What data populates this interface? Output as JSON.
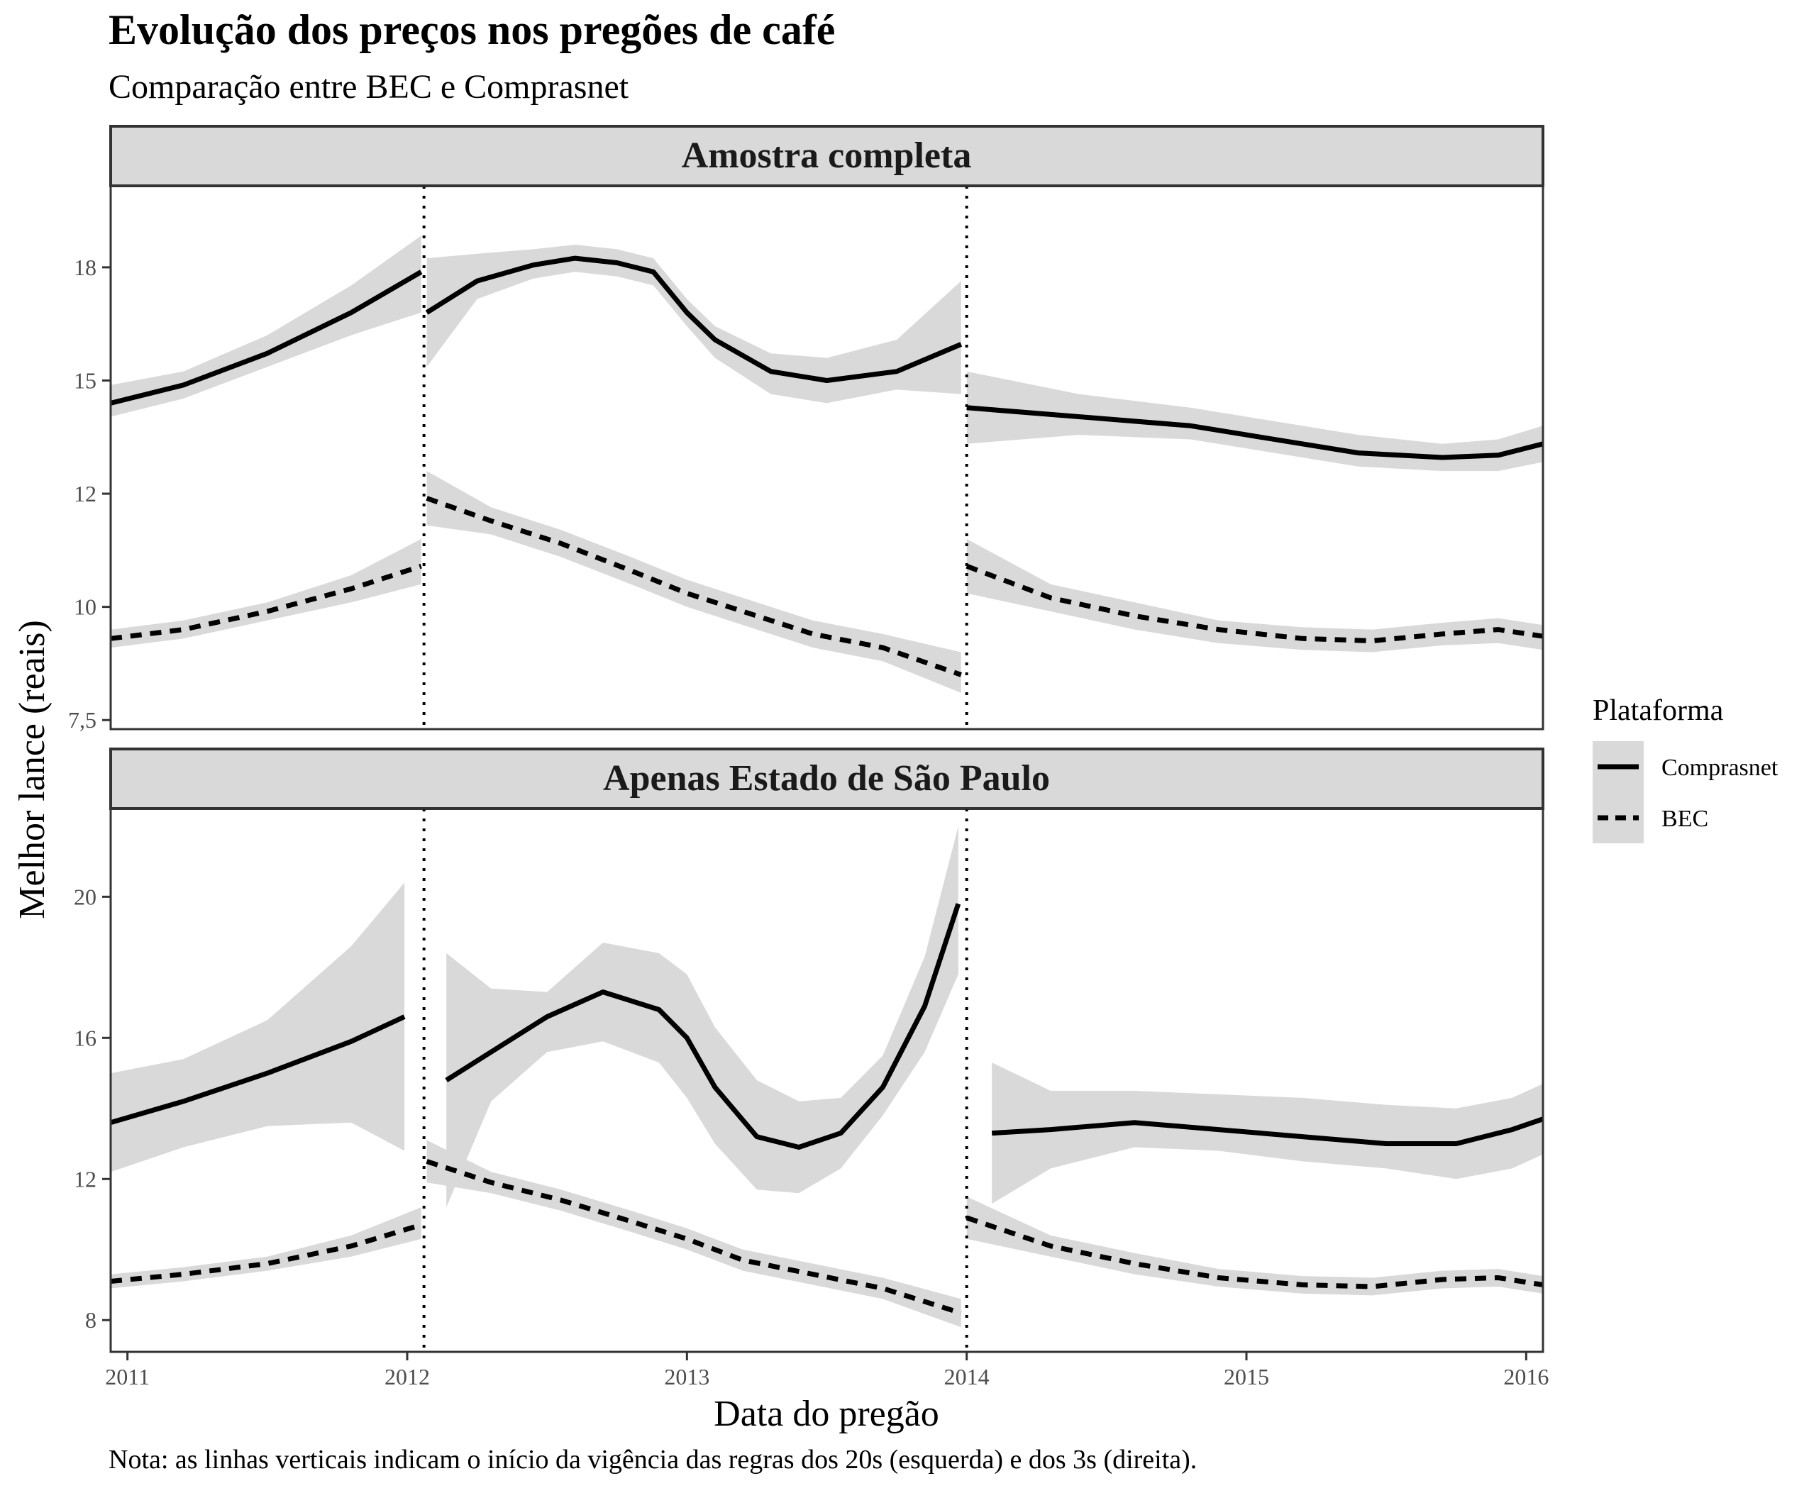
{
  "title": "Evolução dos preços nos pregões de café",
  "subtitle": "Comparação entre BEC e Comprasnet",
  "xlabel": "Data do pregão",
  "ylabel": "Melhor lance (reais)",
  "note": "Nota: as linhas verticais indicam o início da vigência das regras dos 20s (esquerda) e dos 3s (direita).",
  "legend": {
    "title": "Plataforma",
    "items": [
      "Comprasnet",
      "BEC"
    ],
    "placement": "right"
  },
  "colors": {
    "line": "#000000",
    "ribbon": "#d9d9d9",
    "strip_fill": "#d9d9d9",
    "frame": "#333333",
    "axis_text": "#4d4d4d"
  },
  "chart_data": {
    "type": "line",
    "x_axis": {
      "range": [
        2010.94,
        2016.06
      ],
      "ticks": [
        2011,
        2012,
        2013,
        2014,
        2015,
        2016
      ],
      "tick_labels": [
        "2011",
        "2012",
        "2013",
        "2014",
        "2015",
        "2016"
      ]
    },
    "vertical_lines": [
      2012.06,
      2014.0
    ],
    "panels": [
      {
        "title": "Amostra completa",
        "ylim": [
          7.3,
          19.3
        ],
        "y_ticks": [
          7.5,
          10,
          12.5,
          15,
          17.5
        ],
        "y_tick_labels": [
          "7,5",
          "10",
          "12",
          "15",
          "18"
        ],
        "series": [
          {
            "name": "Comprasnet",
            "style": "solid",
            "segments": [
              {
                "x": [
                  2010.94,
                  2011.2,
                  2011.5,
                  2011.8,
                  2012.05
                ],
                "y": [
                  14.5,
                  14.9,
                  15.6,
                  16.5,
                  17.4
                ],
                "lo": [
                  14.2,
                  14.6,
                  15.3,
                  16.0,
                  16.5
                ],
                "hi": [
                  14.9,
                  15.2,
                  16.0,
                  17.1,
                  18.2
                ]
              },
              {
                "x": [
                  2012.07,
                  2012.25,
                  2012.45,
                  2012.6,
                  2012.75,
                  2012.88,
                  2013.0,
                  2013.1,
                  2013.3,
                  2013.5,
                  2013.75,
                  2013.98
                ],
                "y": [
                  16.5,
                  17.2,
                  17.55,
                  17.7,
                  17.6,
                  17.4,
                  16.5,
                  15.9,
                  15.2,
                  15.0,
                  15.2,
                  15.8
                ],
                "lo": [
                  15.3,
                  16.8,
                  17.25,
                  17.4,
                  17.3,
                  17.1,
                  16.2,
                  15.5,
                  14.7,
                  14.5,
                  14.8,
                  14.7
                ],
                "hi": [
                  17.7,
                  17.8,
                  17.9,
                  18.0,
                  17.9,
                  17.7,
                  16.8,
                  16.2,
                  15.6,
                  15.5,
                  15.9,
                  17.2
                ]
              },
              {
                "x": [
                  2014.0,
                  2014.4,
                  2014.8,
                  2015.0,
                  2015.4,
                  2015.7,
                  2015.9,
                  2016.06
                ],
                "y": [
                  14.4,
                  14.2,
                  14.0,
                  13.8,
                  13.4,
                  13.3,
                  13.35,
                  13.6
                ],
                "lo": [
                  13.6,
                  13.8,
                  13.7,
                  13.5,
                  13.1,
                  13.0,
                  13.0,
                  13.2
                ],
                "hi": [
                  15.2,
                  14.7,
                  14.4,
                  14.2,
                  13.8,
                  13.6,
                  13.7,
                  14.0
                ]
              }
            ]
          },
          {
            "name": "BEC",
            "style": "dashed",
            "segments": [
              {
                "x": [
                  2010.94,
                  2011.2,
                  2011.5,
                  2011.8,
                  2012.05
                ],
                "y": [
                  9.3,
                  9.5,
                  9.9,
                  10.4,
                  10.9
                ],
                "lo": [
                  9.1,
                  9.3,
                  9.7,
                  10.1,
                  10.5
                ],
                "hi": [
                  9.5,
                  9.7,
                  10.1,
                  10.7,
                  11.5
                ]
              },
              {
                "x": [
                  2012.07,
                  2012.3,
                  2012.55,
                  2012.8,
                  2013.0,
                  2013.2,
                  2013.45,
                  2013.7,
                  2013.98
                ],
                "y": [
                  12.4,
                  11.9,
                  11.4,
                  10.8,
                  10.3,
                  9.9,
                  9.4,
                  9.1,
                  8.5
                ],
                "lo": [
                  11.8,
                  11.6,
                  11.1,
                  10.5,
                  10.0,
                  9.6,
                  9.1,
                  8.8,
                  8.1
                ],
                "hi": [
                  13.0,
                  12.2,
                  11.7,
                  11.1,
                  10.6,
                  10.2,
                  9.7,
                  9.4,
                  9.0
                ]
              },
              {
                "x": [
                  2014.0,
                  2014.3,
                  2014.6,
                  2014.9,
                  2015.2,
                  2015.45,
                  2015.7,
                  2015.9,
                  2016.06
                ],
                "y": [
                  10.9,
                  10.2,
                  9.8,
                  9.5,
                  9.3,
                  9.25,
                  9.4,
                  9.5,
                  9.35
                ],
                "lo": [
                  10.3,
                  9.9,
                  9.5,
                  9.2,
                  9.05,
                  9.0,
                  9.15,
                  9.2,
                  9.05
                ],
                "hi": [
                  11.5,
                  10.5,
                  10.1,
                  9.7,
                  9.55,
                  9.5,
                  9.65,
                  9.75,
                  9.6
                ]
              }
            ]
          }
        ]
      },
      {
        "title": "Apenas Estado de São Paulo",
        "ylim": [
          7.1,
          22.5
        ],
        "y_ticks": [
          8,
          12,
          16,
          20
        ],
        "y_tick_labels": [
          "8",
          "12",
          "16",
          "20"
        ],
        "series": [
          {
            "name": "Comprasnet",
            "style": "solid",
            "segments": [
              {
                "x": [
                  2010.94,
                  2011.2,
                  2011.5,
                  2011.8,
                  2011.99
                ],
                "y": [
                  13.6,
                  14.2,
                  15.0,
                  15.9,
                  16.6
                ],
                "lo": [
                  12.2,
                  12.9,
                  13.5,
                  13.6,
                  12.8
                ],
                "hi": [
                  15.0,
                  15.4,
                  16.5,
                  18.6,
                  20.4
                ]
              },
              {
                "x": [
                  2012.14,
                  2012.3,
                  2012.5,
                  2012.7,
                  2012.9,
                  2013.0,
                  2013.1,
                  2013.25,
                  2013.4,
                  2013.55,
                  2013.7,
                  2013.85,
                  2013.97
                ],
                "y": [
                  14.8,
                  15.6,
                  16.6,
                  17.3,
                  16.8,
                  16.0,
                  14.6,
                  13.2,
                  12.9,
                  13.3,
                  14.6,
                  16.9,
                  19.8
                ],
                "lo": [
                  11.2,
                  14.2,
                  15.6,
                  15.9,
                  15.3,
                  14.3,
                  13.0,
                  11.7,
                  11.6,
                  12.3,
                  13.8,
                  15.6,
                  17.8
                ],
                "hi": [
                  18.4,
                  17.4,
                  17.3,
                  18.7,
                  18.4,
                  17.8,
                  16.3,
                  14.8,
                  14.2,
                  14.3,
                  15.5,
                  18.3,
                  22.0
                ]
              },
              {
                "x": [
                  2014.09,
                  2014.3,
                  2014.6,
                  2014.9,
                  2015.2,
                  2015.5,
                  2015.75,
                  2015.95,
                  2016.06
                ],
                "y": [
                  13.3,
                  13.4,
                  13.6,
                  13.4,
                  13.2,
                  13.0,
                  13.0,
                  13.4,
                  13.7
                ],
                "lo": [
                  11.3,
                  12.3,
                  12.9,
                  12.8,
                  12.5,
                  12.3,
                  12.0,
                  12.3,
                  12.7
                ],
                "hi": [
                  15.3,
                  14.5,
                  14.5,
                  14.4,
                  14.3,
                  14.1,
                  14.0,
                  14.3,
                  14.7
                ]
              }
            ]
          },
          {
            "name": "BEC",
            "style": "dashed",
            "segments": [
              {
                "x": [
                  2010.94,
                  2011.2,
                  2011.5,
                  2011.8,
                  2012.05
                ],
                "y": [
                  9.1,
                  9.3,
                  9.6,
                  10.1,
                  10.7
                ],
                "lo": [
                  8.9,
                  9.1,
                  9.4,
                  9.8,
                  10.3
                ],
                "hi": [
                  9.3,
                  9.5,
                  9.8,
                  10.4,
                  11.2
                ]
              },
              {
                "x": [
                  2012.07,
                  2012.3,
                  2012.55,
                  2012.8,
                  2013.0,
                  2013.2,
                  2013.45,
                  2013.7,
                  2013.98
                ],
                "y": [
                  12.5,
                  11.9,
                  11.4,
                  10.8,
                  10.3,
                  9.7,
                  9.3,
                  8.9,
                  8.2
                ],
                "lo": [
                  11.9,
                  11.6,
                  11.1,
                  10.5,
                  10.0,
                  9.4,
                  9.0,
                  8.6,
                  7.8
                ],
                "hi": [
                  13.1,
                  12.2,
                  11.7,
                  11.1,
                  10.6,
                  10.0,
                  9.6,
                  9.2,
                  8.6
                ]
              },
              {
                "x": [
                  2014.0,
                  2014.3,
                  2014.6,
                  2014.9,
                  2015.2,
                  2015.45,
                  2015.7,
                  2015.9,
                  2016.06
                ],
                "y": [
                  10.9,
                  10.1,
                  9.6,
                  9.2,
                  9.0,
                  8.95,
                  9.15,
                  9.2,
                  9.0
                ],
                "lo": [
                  10.3,
                  9.8,
                  9.3,
                  8.95,
                  8.75,
                  8.7,
                  8.9,
                  8.95,
                  8.75
                ],
                "hi": [
                  11.5,
                  10.4,
                  9.9,
                  9.45,
                  9.25,
                  9.2,
                  9.4,
                  9.45,
                  9.25
                ]
              }
            ]
          }
        ]
      }
    ]
  }
}
